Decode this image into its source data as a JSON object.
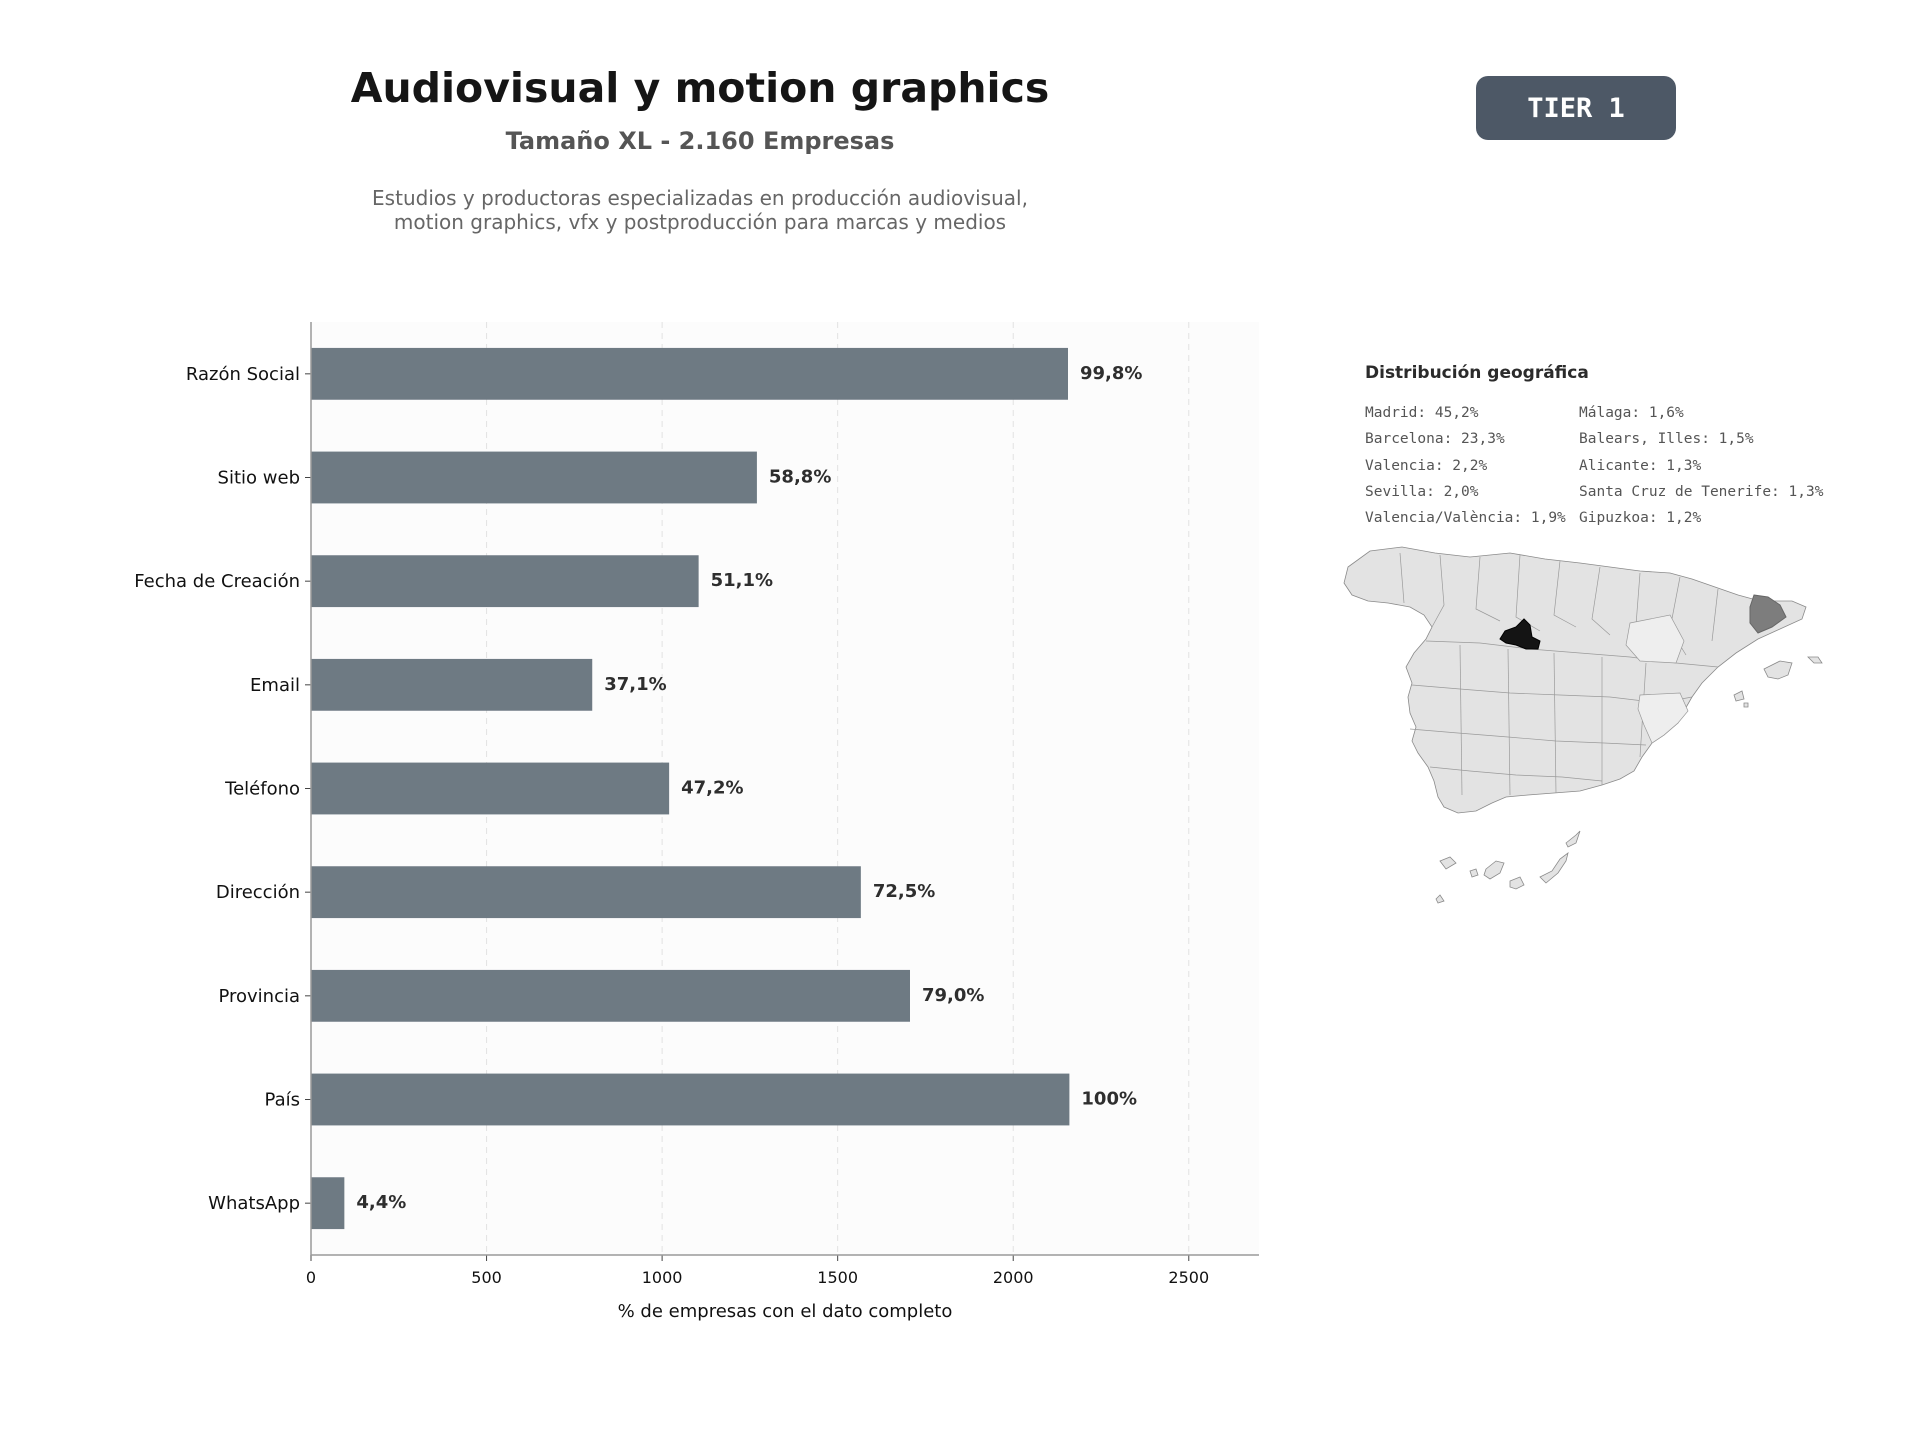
{
  "header": {
    "title": "Audiovisual y motion graphics",
    "subtitle": "Tamaño XL - 2.160 Empresas",
    "description_line1": "Estudios y productoras especializadas en producción audiovisual,",
    "description_line2": "motion graphics, vfx y postproducción para marcas y medios",
    "tier_label": "TIER 1"
  },
  "colors": {
    "bar": "#6e7a83",
    "plot_bg": "#fcfcfc",
    "axis": "#9a9a9a",
    "value_label": "#2e2e2e",
    "map_base": "#e3e3e3",
    "map_madrid": "#141414",
    "map_barcelona": "#7d7d7d"
  },
  "chart_data": {
    "type": "bar",
    "orientation": "horizontal",
    "categories": [
      "Razón Social",
      "Sitio web",
      "Fecha de Creación",
      "Email",
      "Teléfono",
      "Dirección",
      "Provincia",
      "País",
      "WhatsApp"
    ],
    "values": [
      2156,
      1270,
      1104,
      801,
      1020,
      1566,
      1706,
      2160,
      95
    ],
    "value_labels": [
      "99,8%",
      "58,8%",
      "51,1%",
      "37,1%",
      "47,2%",
      "72,5%",
      "79,0%",
      "100%",
      "4,4%"
    ],
    "xlabel": "% de empresas con el dato completo",
    "ylabel": "",
    "xlim": [
      0,
      2700
    ],
    "xticks": [
      0,
      500,
      1000,
      1500,
      2000,
      2500
    ],
    "xtick_labels": [
      "0",
      "500",
      "1000",
      "1500",
      "2000",
      "2500"
    ],
    "grid": "vertical dashed",
    "legend": "none"
  },
  "geo": {
    "title": "Distribución geográfica",
    "items": [
      "Madrid: 45,2%",
      "Málaga: 1,6%",
      "Barcelona: 23,3%",
      "Balears, Illes: 1,5%",
      "Valencia: 2,2%",
      "Alicante: 1,3%",
      "Sevilla: 2,0%",
      "Santa Cruz de Tenerife: 1,3%",
      "Valencia/València: 1,9%",
      "Gipuzkoa: 1,2%"
    ]
  }
}
